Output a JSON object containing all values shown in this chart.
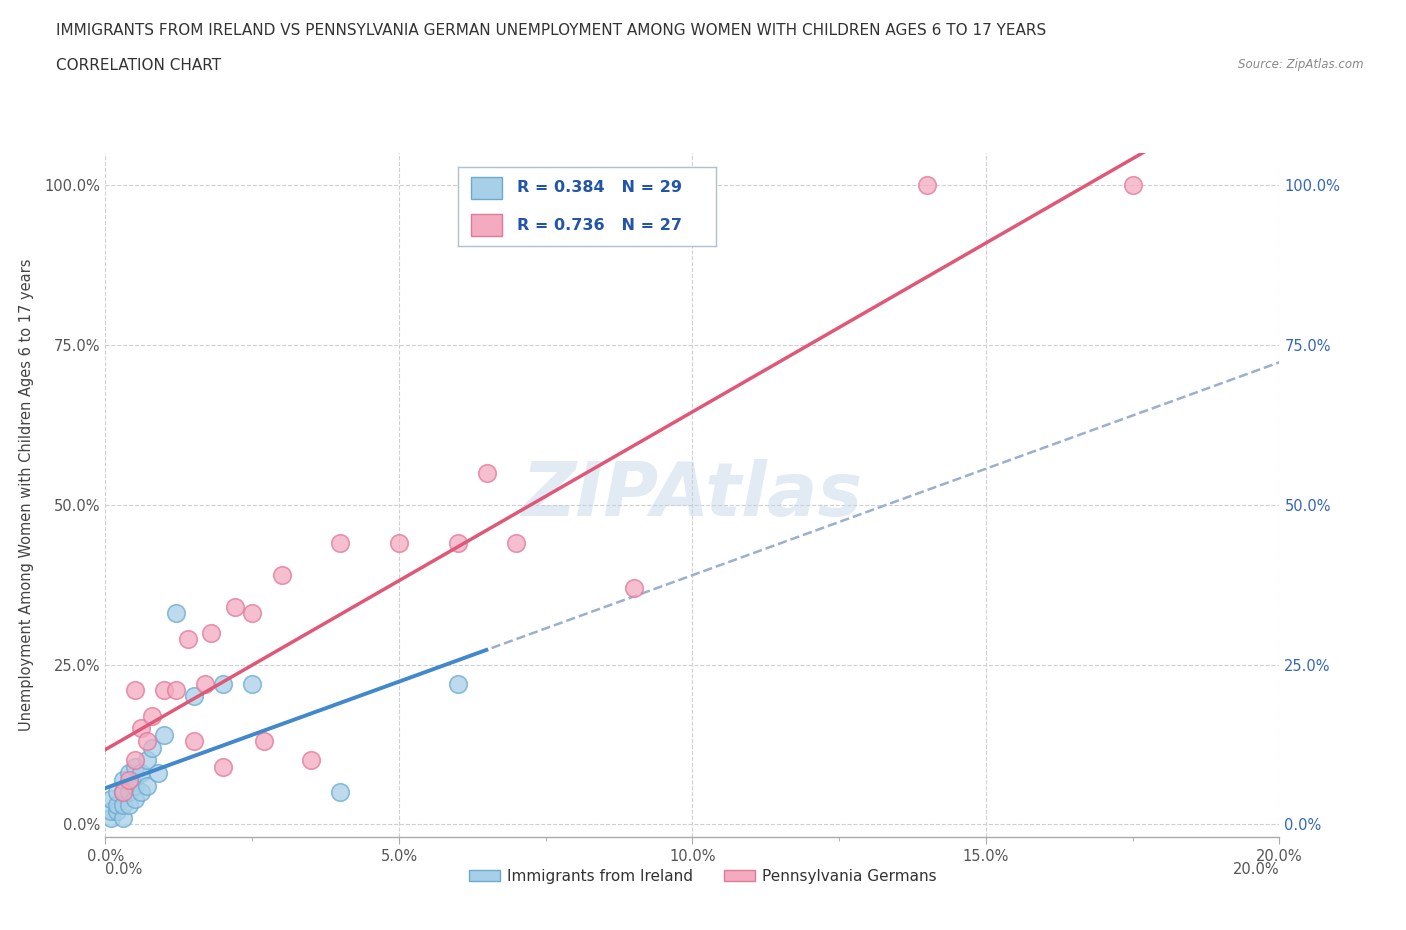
{
  "title_line1": "IMMIGRANTS FROM IRELAND VS PENNSYLVANIA GERMAN UNEMPLOYMENT AMONG WOMEN WITH CHILDREN AGES 6 TO 17 YEARS",
  "title_line2": "CORRELATION CHART",
  "source": "Source: ZipAtlas.com",
  "ylabel": "Unemployment Among Women with Children Ages 6 to 17 years",
  "xlim": [
    0.0,
    0.2
  ],
  "ylim": [
    -0.02,
    1.05
  ],
  "yticks": [
    0.0,
    0.25,
    0.5,
    0.75,
    1.0
  ],
  "ytick_labels": [
    "0.0%",
    "25.0%",
    "50.0%",
    "75.0%",
    "100.0%"
  ],
  "xtick_major": [
    0.0,
    0.05,
    0.1,
    0.15,
    0.2
  ],
  "xtick_minor": [
    0.025,
    0.075,
    0.125,
    0.175
  ],
  "xtick_labels": [
    "0.0%",
    "5.0%",
    "10.0%",
    "15.0%",
    "20.0%"
  ],
  "watermark_text": "ZIPAtlas",
  "ireland_color": "#a8cfe8",
  "ireland_edge_color": "#6aaad0",
  "pennsylvania_color": "#f4aabf",
  "pennsylvania_edge_color": "#e07898",
  "ireland_R": 0.384,
  "ireland_N": 29,
  "pennsylvania_R": 0.736,
  "pennsylvania_N": 27,
  "legend_label_ireland": "Immigrants from Ireland",
  "legend_label_pennsylvania": "Pennsylvania Germans",
  "ireland_x": [
    0.001,
    0.001,
    0.001,
    0.002,
    0.002,
    0.002,
    0.003,
    0.003,
    0.003,
    0.003,
    0.004,
    0.004,
    0.004,
    0.005,
    0.005,
    0.005,
    0.006,
    0.006,
    0.007,
    0.007,
    0.008,
    0.009,
    0.01,
    0.012,
    0.015,
    0.02,
    0.025,
    0.04,
    0.06
  ],
  "ireland_y": [
    0.01,
    0.02,
    0.04,
    0.02,
    0.03,
    0.05,
    0.01,
    0.03,
    0.05,
    0.07,
    0.03,
    0.05,
    0.08,
    0.04,
    0.06,
    0.09,
    0.05,
    0.08,
    0.06,
    0.1,
    0.12,
    0.08,
    0.14,
    0.33,
    0.2,
    0.22,
    0.22,
    0.05,
    0.22
  ],
  "pennsylvania_x": [
    0.003,
    0.004,
    0.005,
    0.005,
    0.006,
    0.007,
    0.008,
    0.01,
    0.012,
    0.014,
    0.015,
    0.017,
    0.018,
    0.02,
    0.022,
    0.025,
    0.027,
    0.03,
    0.035,
    0.04,
    0.05,
    0.06,
    0.065,
    0.07,
    0.09,
    0.14,
    0.175
  ],
  "pennsylvania_y": [
    0.05,
    0.07,
    0.1,
    0.21,
    0.15,
    0.13,
    0.17,
    0.21,
    0.21,
    0.29,
    0.13,
    0.22,
    0.3,
    0.09,
    0.34,
    0.33,
    0.13,
    0.39,
    0.1,
    0.44,
    0.44,
    0.44,
    0.55,
    0.44,
    0.37,
    1.0,
    1.0
  ],
  "grid_color": "#d0d0d0",
  "background_color": "#ffffff",
  "ireland_line_color": "#4488cc",
  "penn_line_color": "#e05878",
  "dash_line_color": "#9ab0cc",
  "title_color": "#333333",
  "right_label_color": "#3366bb",
  "legend_text_color": "#2255aa"
}
